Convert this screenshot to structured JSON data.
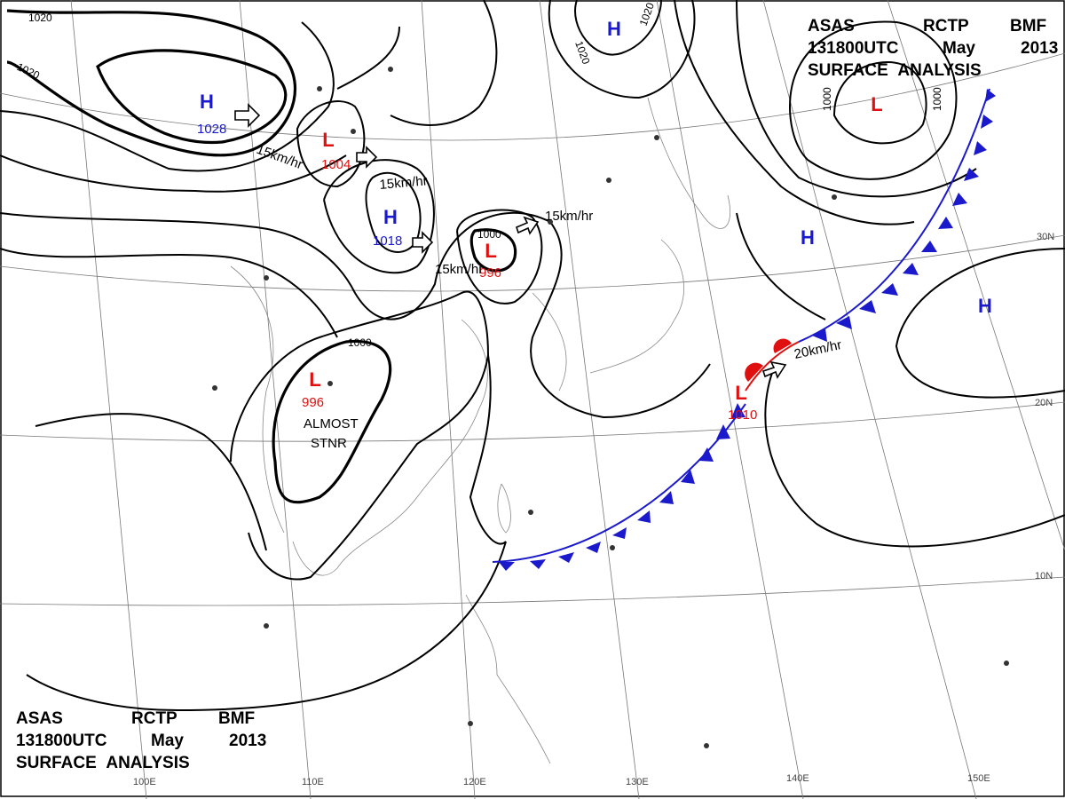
{
  "header": {
    "line1": [
      "ASAS",
      "RCTP",
      "BMF"
    ],
    "line2": [
      "131800UTC",
      "May",
      "2013"
    ],
    "line3": "SURFACE ANALYSIS"
  },
  "systems": [
    {
      "symbol": "H",
      "pressure": "1028",
      "color": "#1a1acc"
    },
    {
      "symbol": "L",
      "pressure": "1004",
      "color": "#e01010"
    },
    {
      "symbol": "H",
      "pressure": "1018",
      "color": "#1a1acc"
    },
    {
      "symbol": "L",
      "pressure": "996",
      "color": "#e01010"
    },
    {
      "symbol": "L",
      "pressure": "996",
      "color": "#e01010"
    },
    {
      "symbol": "L",
      "pressure": "1010",
      "color": "#e01010"
    },
    {
      "symbol": "L",
      "color": "#e01010"
    },
    {
      "symbol": "H",
      "color": "#1a1acc"
    },
    {
      "symbol": "H",
      "color": "#1a1acc"
    },
    {
      "symbol": "H",
      "color": "#1a1acc"
    }
  ],
  "isobar_labels": [
    "1020",
    "1020",
    "1020",
    "1020",
    "1000",
    "1000",
    "1000",
    "1000"
  ],
  "motion_labels": [
    "15km/hr",
    "15km/hr",
    "15km/hr",
    "15km/hr",
    "20km/hr"
  ],
  "annotation": [
    "ALMOST",
    "STNR"
  ],
  "longitude_labels": [
    "100E",
    "110E",
    "120E",
    "130E",
    "140E",
    "150E"
  ],
  "latitude_labels": [
    "30N",
    "20N",
    "10N"
  ]
}
